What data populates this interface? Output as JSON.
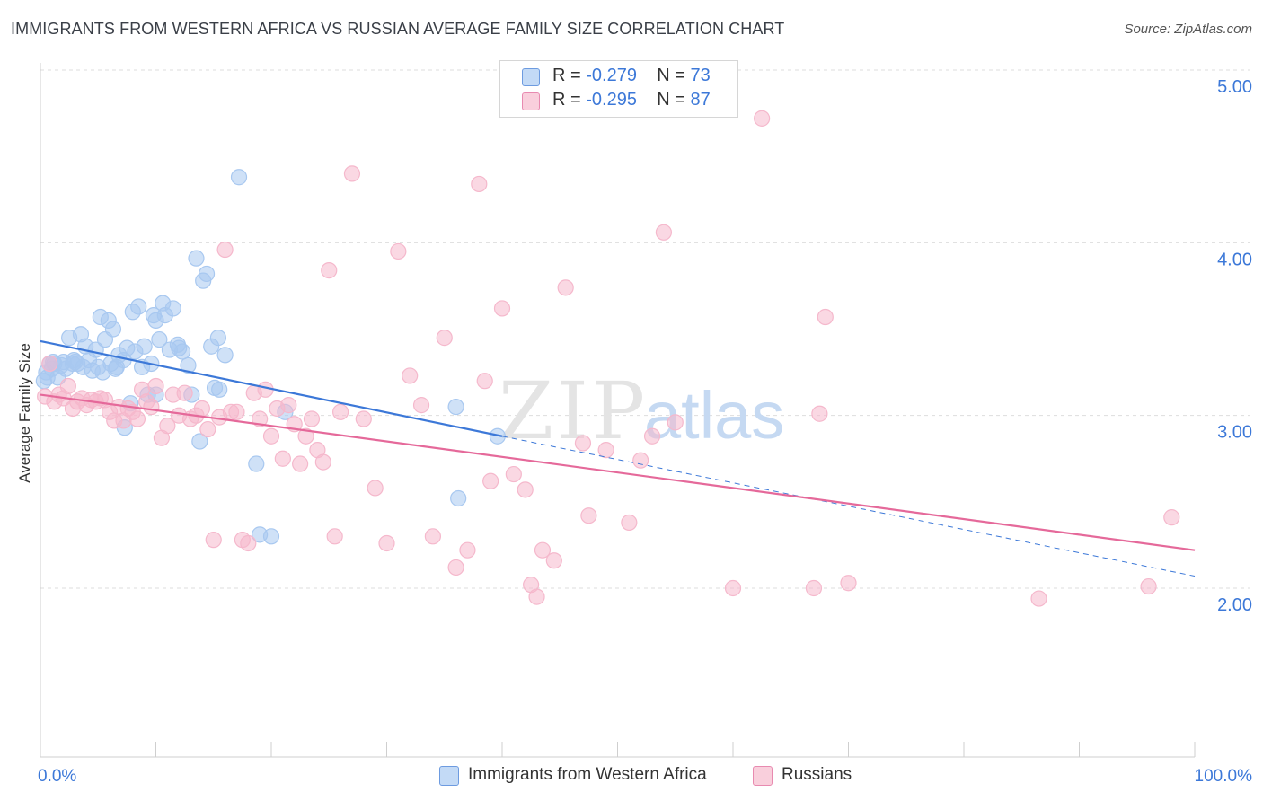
{
  "title": "IMMIGRANTS FROM WESTERN AFRICA VS RUSSIAN AVERAGE FAMILY SIZE CORRELATION CHART",
  "source": "Source: ZipAtlas.com",
  "watermark": {
    "zip": "ZIP",
    "atlas": "atlas"
  },
  "stats": [
    {
      "r_label": "R = ",
      "r_value": "-0.279",
      "n_label": "N = ",
      "n_value": "73",
      "color": "#a8c8f0"
    },
    {
      "r_label": "R = ",
      "r_value": "-0.295",
      "n_label": "N = ",
      "n_value": "87",
      "color": "#f5b8cc"
    }
  ],
  "legend": [
    {
      "label": "Immigrants from Western Africa",
      "color": "#a8c8f0"
    },
    {
      "label": "Russians",
      "color": "#f5b8cc"
    }
  ],
  "chart_data": {
    "type": "scatter",
    "title": "IMMIGRANTS FROM WESTERN AFRICA VS RUSSIAN AVERAGE FAMILY SIZE CORRELATION CHART",
    "xlabel": "",
    "ylabel": "Average Family Size",
    "xlim": [
      0,
      100
    ],
    "ylim": [
      1.2,
      5.15
    ],
    "x_tick_labels": [
      "0.0%",
      "100.0%"
    ],
    "y_ticks": [
      2.0,
      3.0,
      4.0,
      5.0
    ],
    "y_tick_labels": [
      "2.00",
      "3.00",
      "4.00",
      "5.00"
    ],
    "grid": true,
    "series": [
      {
        "name": "Immigrants from Western Africa",
        "color": "#3c78d8",
        "fill": "#a8c8f0",
        "trend": {
          "x0": 0,
          "y0": 3.43,
          "x1": 40,
          "y1": 2.88,
          "dash_to_x": 100,
          "dash_to_y": 2.07
        },
        "points": [
          [
            0.3,
            3.2
          ],
          [
            0.5,
            3.25
          ],
          [
            0.6,
            3.22
          ],
          [
            0.8,
            3.3
          ],
          [
            1.0,
            3.27
          ],
          [
            1.2,
            3.3
          ],
          [
            1.5,
            3.22
          ],
          [
            1.8,
            3.29
          ],
          [
            2.0,
            3.31
          ],
          [
            2.2,
            3.27
          ],
          [
            2.5,
            3.45
          ],
          [
            2.8,
            3.3
          ],
          [
            3.0,
            3.31
          ],
          [
            3.2,
            3.3
          ],
          [
            3.5,
            3.47
          ],
          [
            3.7,
            3.28
          ],
          [
            3.9,
            3.4
          ],
          [
            4.2,
            3.32
          ],
          [
            4.5,
            3.26
          ],
          [
            4.8,
            3.38
          ],
          [
            5.0,
            3.28
          ],
          [
            5.2,
            3.57
          ],
          [
            5.4,
            3.25
          ],
          [
            5.6,
            3.44
          ],
          [
            5.9,
            3.55
          ],
          [
            6.1,
            3.3
          ],
          [
            6.3,
            3.5
          ],
          [
            6.5,
            3.27
          ],
          [
            6.8,
            3.35
          ],
          [
            7.2,
            3.32
          ],
          [
            7.5,
            3.39
          ],
          [
            7.8,
            3.07
          ],
          [
            8.2,
            3.37
          ],
          [
            8.5,
            3.63
          ],
          [
            8.8,
            3.28
          ],
          [
            9.0,
            3.4
          ],
          [
            9.3,
            3.12
          ],
          [
            9.6,
            3.3
          ],
          [
            9.8,
            3.58
          ],
          [
            10.0,
            3.55
          ],
          [
            10.3,
            3.44
          ],
          [
            10.6,
            3.65
          ],
          [
            10.8,
            3.58
          ],
          [
            11.2,
            3.38
          ],
          [
            11.5,
            3.62
          ],
          [
            12.0,
            3.39
          ],
          [
            12.3,
            3.37
          ],
          [
            12.8,
            3.29
          ],
          [
            13.1,
            3.12
          ],
          [
            13.5,
            3.91
          ],
          [
            13.8,
            2.85
          ],
          [
            14.1,
            3.78
          ],
          [
            14.4,
            3.82
          ],
          [
            14.8,
            3.4
          ],
          [
            15.1,
            3.16
          ],
          [
            15.4,
            3.45
          ],
          [
            16.0,
            3.35
          ],
          [
            17.2,
            4.38
          ],
          [
            18.7,
            2.72
          ],
          [
            15.5,
            3.15
          ],
          [
            19.0,
            2.31
          ],
          [
            20.0,
            2.3
          ],
          [
            21.2,
            3.02
          ],
          [
            7.3,
            2.93
          ],
          [
            10.0,
            3.12
          ],
          [
            36.0,
            3.05
          ],
          [
            36.2,
            2.52
          ],
          [
            39.6,
            2.88
          ],
          [
            1.1,
            3.31
          ],
          [
            2.9,
            3.32
          ],
          [
            6.6,
            3.28
          ],
          [
            11.9,
            3.41
          ],
          [
            8.0,
            3.6
          ]
        ]
      },
      {
        "name": "Russians",
        "color": "#e5699a",
        "fill": "#f5b8cc",
        "trend": {
          "x0": 0,
          "y0": 3.12,
          "x1": 100,
          "y1": 2.22
        },
        "points": [
          [
            0.4,
            3.11
          ],
          [
            0.8,
            3.3
          ],
          [
            1.2,
            3.08
          ],
          [
            1.6,
            3.12
          ],
          [
            2.0,
            3.1
          ],
          [
            2.4,
            3.17
          ],
          [
            2.8,
            3.04
          ],
          [
            3.2,
            3.08
          ],
          [
            3.6,
            3.1
          ],
          [
            4.0,
            3.06
          ],
          [
            4.4,
            3.09
          ],
          [
            4.8,
            3.08
          ],
          [
            5.2,
            3.1
          ],
          [
            5.6,
            3.09
          ],
          [
            6.0,
            3.02
          ],
          [
            6.4,
            2.97
          ],
          [
            6.8,
            3.05
          ],
          [
            7.2,
            2.97
          ],
          [
            7.6,
            3.04
          ],
          [
            8.0,
            3.02
          ],
          [
            8.4,
            2.98
          ],
          [
            8.8,
            3.15
          ],
          [
            9.2,
            3.08
          ],
          [
            9.6,
            3.05
          ],
          [
            10.0,
            3.17
          ],
          [
            10.5,
            2.87
          ],
          [
            11.0,
            2.94
          ],
          [
            11.5,
            3.12
          ],
          [
            12.0,
            3.0
          ],
          [
            12.5,
            3.13
          ],
          [
            13.0,
            2.98
          ],
          [
            13.5,
            3.0
          ],
          [
            14.0,
            3.04
          ],
          [
            14.5,
            2.92
          ],
          [
            15.0,
            2.28
          ],
          [
            15.5,
            2.99
          ],
          [
            16.0,
            3.96
          ],
          [
            16.5,
            3.02
          ],
          [
            17.0,
            3.02
          ],
          [
            17.5,
            2.28
          ],
          [
            18.0,
            2.26
          ],
          [
            18.5,
            3.13
          ],
          [
            19.0,
            2.98
          ],
          [
            19.5,
            3.15
          ],
          [
            20.0,
            2.88
          ],
          [
            20.5,
            3.04
          ],
          [
            21.0,
            2.75
          ],
          [
            21.5,
            3.06
          ],
          [
            22.0,
            2.95
          ],
          [
            22.5,
            2.72
          ],
          [
            23.0,
            2.88
          ],
          [
            23.5,
            2.98
          ],
          [
            24.0,
            2.8
          ],
          [
            24.5,
            2.73
          ],
          [
            25.0,
            3.84
          ],
          [
            25.5,
            2.3
          ],
          [
            26.0,
            3.02
          ],
          [
            27.0,
            4.4
          ],
          [
            28.0,
            2.98
          ],
          [
            29.0,
            2.58
          ],
          [
            30.0,
            2.26
          ],
          [
            31.0,
            3.95
          ],
          [
            32.0,
            3.23
          ],
          [
            33.0,
            3.06
          ],
          [
            34.0,
            2.3
          ],
          [
            35.0,
            3.45
          ],
          [
            36.0,
            2.12
          ],
          [
            37.0,
            2.22
          ],
          [
            38.0,
            4.34
          ],
          [
            38.5,
            3.2
          ],
          [
            39.0,
            2.62
          ],
          [
            40.0,
            3.62
          ],
          [
            41.0,
            2.66
          ],
          [
            42.0,
            2.57
          ],
          [
            42.5,
            2.02
          ],
          [
            43.0,
            1.95
          ],
          [
            43.5,
            2.22
          ],
          [
            44.5,
            2.16
          ],
          [
            45.5,
            3.74
          ],
          [
            47.0,
            2.84
          ],
          [
            47.5,
            2.42
          ],
          [
            49.0,
            2.8
          ],
          [
            51.0,
            2.38
          ],
          [
            52.0,
            2.74
          ],
          [
            53.0,
            2.88
          ],
          [
            54.0,
            4.06
          ],
          [
            55.0,
            2.96
          ]
        ],
        "extra_points": [
          [
            60.0,
            2.0
          ],
          [
            62.5,
            4.72
          ],
          [
            67.0,
            2.0
          ],
          [
            67.5,
            3.01
          ],
          [
            68.0,
            3.57
          ],
          [
            70.0,
            2.03
          ],
          [
            86.5,
            1.94
          ],
          [
            96.0,
            2.01
          ],
          [
            98.0,
            2.41
          ]
        ]
      }
    ]
  }
}
